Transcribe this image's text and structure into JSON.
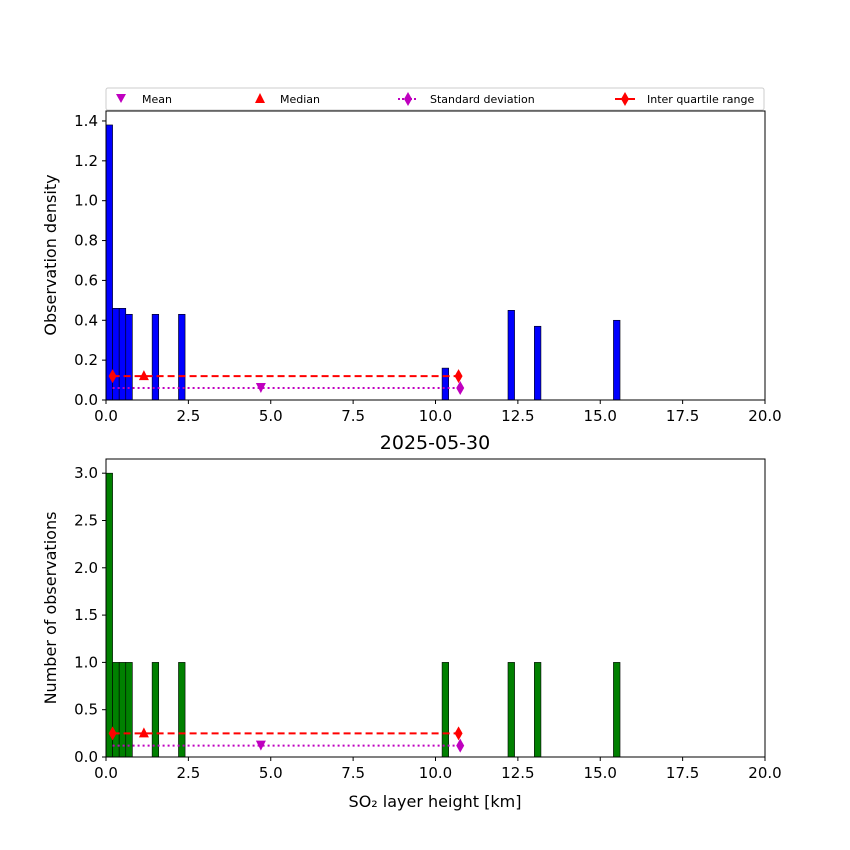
{
  "legend": {
    "mean": "Mean",
    "median": "Median",
    "std": "Standard deviation",
    "iqr": "Inter quartile range"
  },
  "x_axis": {
    "label": "SO₂ layer height [km]",
    "ticks": [
      "0.0",
      "2.5",
      "5.0",
      "7.5",
      "10.0",
      "12.5",
      "15.0",
      "17.5",
      "20.0"
    ],
    "range": [
      0,
      20
    ]
  },
  "colors": {
    "top_bars": "#0000ff",
    "bottom_bars": "#008000",
    "mean": "#bf00bf",
    "std": "#bf00bf",
    "median": "#ff0000",
    "iqr": "#ff0000"
  },
  "chart_data": [
    {
      "type": "bar",
      "ylabel": "Observation density",
      "xlabel": "",
      "ylim": [
        0,
        1.45
      ],
      "xlim": [
        0,
        20
      ],
      "yticks": [
        "0.0",
        "0.2",
        "0.4",
        "0.6",
        "0.8",
        "1.0",
        "1.2",
        "1.4"
      ],
      "bin_width": 0.2,
      "bins": [
        {
          "x": 0.0,
          "value": 1.38
        },
        {
          "x": 0.2,
          "value": 0.46
        },
        {
          "x": 0.4,
          "value": 0.46
        },
        {
          "x": 0.6,
          "value": 0.43
        },
        {
          "x": 1.4,
          "value": 0.43
        },
        {
          "x": 2.2,
          "value": 0.43
        },
        {
          "x": 10.2,
          "value": 0.16
        },
        {
          "x": 12.2,
          "value": 0.45
        },
        {
          "x": 13.0,
          "value": 0.37
        },
        {
          "x": 15.4,
          "value": 0.4
        }
      ],
      "statistics": {
        "level_iqr": 0.12,
        "level_std": 0.06,
        "mean": 4.7,
        "median": 1.15,
        "iqr": [
          0.2,
          10.7
        ],
        "std": [
          0.2,
          10.75
        ]
      }
    },
    {
      "type": "bar",
      "title": "2025-05-30",
      "ylabel": "Number of observations",
      "xlabel": "SO₂ layer height [km]",
      "ylim": [
        0,
        3.15
      ],
      "xlim": [
        0,
        20
      ],
      "yticks": [
        "0.0",
        "0.5",
        "1.0",
        "1.5",
        "2.0",
        "2.5",
        "3.0"
      ],
      "bin_width": 0.2,
      "bins": [
        {
          "x": 0.0,
          "value": 3
        },
        {
          "x": 0.2,
          "value": 1
        },
        {
          "x": 0.4,
          "value": 1
        },
        {
          "x": 0.6,
          "value": 1
        },
        {
          "x": 1.4,
          "value": 1
        },
        {
          "x": 2.2,
          "value": 1
        },
        {
          "x": 10.2,
          "value": 1
        },
        {
          "x": 12.2,
          "value": 1
        },
        {
          "x": 13.0,
          "value": 1
        },
        {
          "x": 15.4,
          "value": 1
        }
      ],
      "statistics": {
        "level_iqr": 0.25,
        "level_std": 0.12,
        "mean": 4.7,
        "median": 1.15,
        "iqr": [
          0.2,
          10.7
        ],
        "std": [
          0.2,
          10.75
        ]
      }
    }
  ]
}
